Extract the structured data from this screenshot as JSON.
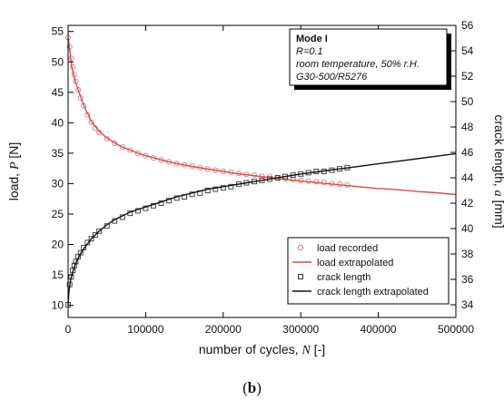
{
  "caption": {
    "open": "(",
    "letter": "b",
    "close": ")"
  },
  "chart_data": {
    "type": "scatter",
    "title": "",
    "xlabel": "number of cycles, N [-]",
    "xlabel_parts": {
      "text": "number of cycles, ",
      "var": "N",
      "unit": " [-]"
    },
    "ylabel_left": "load, P [N]",
    "ylabel_left_parts": {
      "text": "load, ",
      "var": "P",
      "unit": " [N]"
    },
    "ylabel_right": "crack length, a [mm]",
    "ylabel_right_parts": {
      "text": "crack length, ",
      "var": "a",
      "unit": " [mm]"
    },
    "xlim": [
      0,
      500000
    ],
    "ylim_left": [
      8,
      56
    ],
    "ylim_right": [
      33,
      56
    ],
    "x_ticks": [
      0,
      100000,
      200000,
      300000,
      400000,
      500000
    ],
    "y_left_ticks": [
      10,
      15,
      20,
      25,
      30,
      35,
      40,
      45,
      50,
      55
    ],
    "y_right_ticks": [
      34,
      36,
      38,
      40,
      42,
      44,
      46,
      48,
      50,
      52,
      54,
      56
    ],
    "grid": false,
    "legend_position": "bottom-right",
    "info_box": {
      "title": "Mode I",
      "lines": [
        "R=0.1",
        "room temperature, 50% r.H.",
        "G30-500/R5276"
      ]
    },
    "series": [
      {
        "name": "load recorded",
        "axis": "left",
        "kind": "markers",
        "marker": "circle",
        "color": "#d87a7a",
        "x": [
          0,
          2000,
          4000,
          6000,
          8000,
          10000,
          13000,
          16000,
          20000,
          25000,
          30000,
          35000,
          40000,
          50000,
          60000,
          70000,
          80000,
          90000,
          100000,
          110000,
          120000,
          130000,
          140000,
          150000,
          160000,
          170000,
          180000,
          190000,
          200000,
          210000,
          220000,
          230000,
          240000,
          250000,
          260000,
          270000,
          280000,
          290000,
          300000,
          310000,
          320000,
          330000,
          340000,
          350000,
          360000
        ],
        "y": [
          54,
          52.5,
          50.6,
          49.2,
          47.9,
          46.8,
          45.4,
          44.1,
          42.8,
          41.3,
          40.1,
          39.1,
          38.4,
          37.4,
          36.6,
          36,
          35.5,
          35,
          34.6,
          34.2,
          33.9,
          33.6,
          33.3,
          33.1,
          32.9,
          32.6,
          32.4,
          32.2,
          32,
          31.9,
          31.7,
          31.5,
          31.4,
          31.2,
          31.1,
          30.9,
          30.8,
          30.7,
          30.5,
          30.4,
          30.3,
          30.2,
          30,
          29.9,
          29.8
        ]
      },
      {
        "name": "load extrapolated",
        "axis": "left",
        "kind": "line",
        "color": "#d84a4a",
        "x": [
          0,
          5000,
          10000,
          20000,
          30000,
          40000,
          50000,
          60000,
          70000,
          80000,
          90000,
          100000,
          120000,
          140000,
          160000,
          180000,
          200000,
          220000,
          240000,
          260000,
          280000,
          300000,
          325000,
          350000,
          375000,
          400000,
          425000,
          450000,
          475000,
          500000
        ],
        "y": [
          54,
          49,
          46.5,
          42.9,
          40.2,
          38.6,
          37.5,
          36.7,
          36,
          35.5,
          35,
          34.6,
          33.9,
          33.3,
          32.8,
          32.4,
          32,
          31.6,
          31.3,
          31,
          30.7,
          30.4,
          30.1,
          29.8,
          29.5,
          29.2,
          29,
          28.7,
          28.5,
          28.2
        ]
      },
      {
        "name": "crack length",
        "axis": "right",
        "kind": "markers",
        "marker": "square",
        "color": "#333333",
        "x": [
          0,
          2000,
          4000,
          6000,
          8000,
          10000,
          13000,
          16000,
          20000,
          25000,
          30000,
          35000,
          40000,
          50000,
          60000,
          70000,
          80000,
          90000,
          100000,
          110000,
          120000,
          130000,
          140000,
          150000,
          160000,
          170000,
          180000,
          190000,
          200000,
          210000,
          220000,
          230000,
          240000,
          250000,
          260000,
          270000,
          280000,
          290000,
          300000,
          310000,
          320000,
          330000,
          340000,
          350000,
          360000
        ],
        "y": [
          34,
          35.6,
          36.2,
          36.7,
          37.1,
          37.4,
          37.8,
          38.1,
          38.5,
          38.9,
          39.2,
          39.5,
          39.8,
          40.2,
          40.6,
          40.9,
          41.2,
          41.4,
          41.6,
          41.8,
          42,
          42.2,
          42.4,
          42.5,
          42.7,
          42.8,
          43,
          43.1,
          43.2,
          43.3,
          43.5,
          43.6,
          43.7,
          43.8,
          43.9,
          44,
          44.1,
          44.2,
          44.3,
          44.4,
          44.5,
          44.5,
          44.6,
          44.7,
          44.8
        ]
      },
      {
        "name": "crack length extrapolated",
        "axis": "right",
        "kind": "line",
        "color": "#111111",
        "x": [
          0,
          1000,
          3000,
          6000,
          10000,
          15000,
          20000,
          30000,
          40000,
          50000,
          60000,
          70000,
          80000,
          90000,
          100000,
          120000,
          140000,
          160000,
          180000,
          200000,
          220000,
          240000,
          260000,
          280000,
          300000,
          325000,
          350000,
          375000,
          400000,
          425000,
          450000,
          475000,
          500000
        ],
        "y": [
          34,
          35,
          35.9,
          36.6,
          37.3,
          37.9,
          38.4,
          39.2,
          39.8,
          40.3,
          40.7,
          41,
          41.3,
          41.5,
          41.7,
          42.1,
          42.5,
          42.8,
          43.1,
          43.3,
          43.5,
          43.7,
          43.9,
          44.1,
          44.3,
          44.5,
          44.7,
          44.9,
          45.1,
          45.3,
          45.5,
          45.7,
          45.9
        ]
      }
    ]
  }
}
